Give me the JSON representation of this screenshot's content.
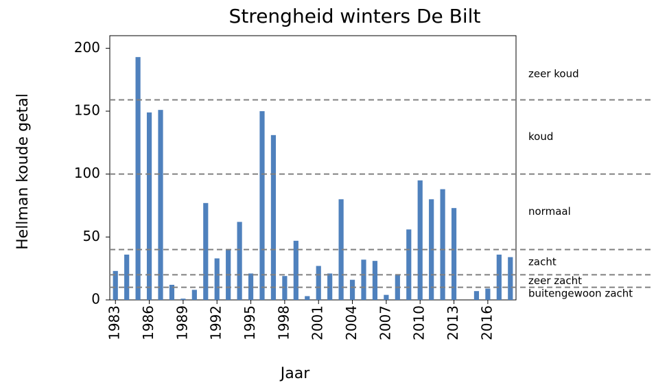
{
  "chart_data": {
    "type": "bar",
    "title": "Strengheid winters De Bilt",
    "x_label": "Jaar",
    "y_label": "Hellman koude getal",
    "categories": [
      "1983",
      null,
      null,
      "1986",
      null,
      null,
      "1989",
      null,
      null,
      "1992",
      null,
      null,
      "1995",
      null,
      null,
      "1998",
      null,
      null,
      "2001",
      null,
      null,
      "2004",
      null,
      null,
      "2007",
      null,
      null,
      "2010",
      null,
      null,
      "2013",
      null,
      null,
      "2016",
      null,
      null
    ],
    "values": [
      23,
      36,
      193,
      149,
      151,
      12,
      1,
      8,
      77,
      33,
      40,
      62,
      21,
      150,
      131,
      19,
      47,
      3,
      27,
      21,
      80,
      16,
      32,
      31,
      4,
      20,
      56,
      95,
      80,
      88,
      73,
      0,
      7,
      9,
      36,
      34
    ],
    "color": "#4f81bd",
    "ylim": [
      0,
      210
    ],
    "yticks": [
      0,
      50,
      100,
      150,
      200
    ],
    "thresholds": [
      159,
      100,
      40,
      20,
      10
    ],
    "zones": [
      "zeer koud",
      "koud",
      "normaal",
      "zacht",
      "zeer zacht",
      "buitengewoon zacht"
    ]
  }
}
